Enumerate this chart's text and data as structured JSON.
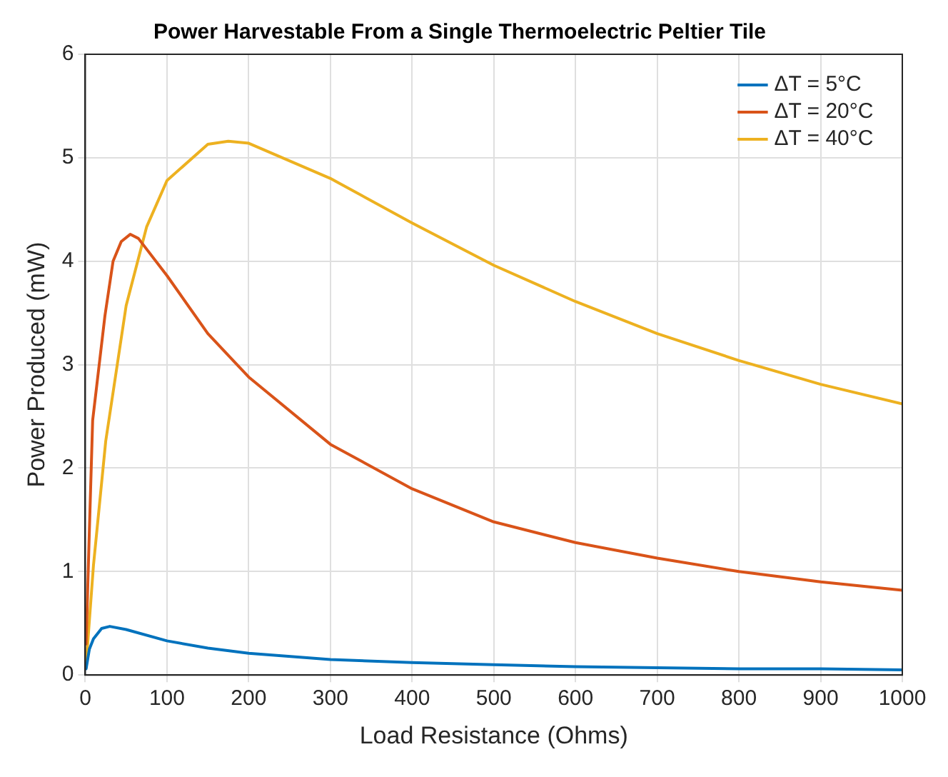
{
  "chart_data": {
    "type": "line",
    "title": "Power Harvestable From a Single Thermoelectric Peltier Tile",
    "xlabel": "Load Resistance (Ohms)",
    "ylabel": "Power Produced (mW)",
    "xlim": [
      0,
      1000
    ],
    "xticks": [
      0,
      100,
      200,
      300,
      400,
      500,
      600,
      700,
      800,
      900,
      1000
    ],
    "ylim": [
      0,
      6
    ],
    "yticks": [
      0,
      1,
      2,
      3,
      4,
      5,
      6
    ],
    "grid": true,
    "legend": "top right",
    "marker": "none",
    "line_style": "solid",
    "series": [
      {
        "name": "ΔT = 5°C",
        "color": "#0072bd",
        "x": [
          1,
          5,
          10,
          20,
          30,
          50,
          100,
          150,
          200,
          300,
          400,
          500,
          600,
          700,
          800,
          900,
          1000
        ],
        "values": [
          0.06,
          0.25,
          0.35,
          0.45,
          0.47,
          0.44,
          0.33,
          0.26,
          0.21,
          0.15,
          0.12,
          0.1,
          0.08,
          0.07,
          0.06,
          0.06,
          0.05
        ]
      },
      {
        "name": "ΔT = 20°C",
        "color": "#d95319",
        "x": [
          1,
          5,
          9,
          24,
          34,
          44,
          55,
          65,
          100,
          150,
          200,
          300,
          400,
          500,
          600,
          700,
          800,
          900,
          1000
        ],
        "values": [
          0.3,
          1.4,
          2.46,
          3.47,
          4.0,
          4.19,
          4.26,
          4.22,
          3.86,
          3.3,
          2.88,
          2.23,
          1.8,
          1.48,
          1.28,
          1.13,
          1.0,
          0.9,
          0.82
        ]
      },
      {
        "name": "ΔT = 40°C",
        "color": "#edb120",
        "x": [
          1,
          10,
          25,
          50,
          75,
          100,
          150,
          175,
          200,
          300,
          400,
          500,
          600,
          700,
          800,
          900,
          1000
        ],
        "values": [
          0.1,
          1.06,
          2.26,
          3.57,
          4.33,
          4.78,
          5.13,
          5.16,
          5.14,
          4.8,
          4.37,
          3.96,
          3.61,
          3.3,
          3.04,
          2.81,
          2.62
        ]
      }
    ]
  }
}
